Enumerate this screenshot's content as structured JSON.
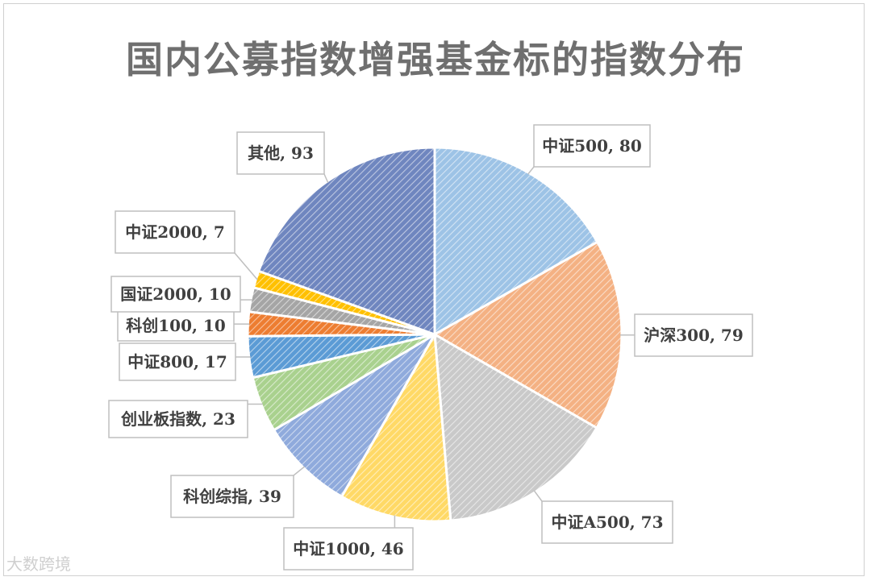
{
  "chart_data": {
    "type": "pie",
    "title": "国内公募指数增强基金标的指数分布",
    "slices": [
      {
        "name": "中证500",
        "value": 80,
        "label": "中证500, 80",
        "color": "#9dc3e6"
      },
      {
        "name": "沪深300",
        "value": 79,
        "label": "沪深300, 79",
        "color": "#f4b183"
      },
      {
        "name": "中证A500",
        "value": 73,
        "label": "中证A500, 73",
        "color": "#c9c9c9"
      },
      {
        "name": "中证1000",
        "value": 46,
        "label": "中证1000, 46",
        "color": "#ffd966"
      },
      {
        "name": "科创综指",
        "value": 39,
        "label": "科创综指, 39",
        "color": "#8faadc"
      },
      {
        "name": "创业板指数",
        "value": 23,
        "label": "创业板指数, 23",
        "color": "#a9d18e"
      },
      {
        "name": "中证800",
        "value": 17,
        "label": "中证800, 17",
        "color": "#5b9bd5"
      },
      {
        "name": "科创100",
        "value": 10,
        "label": "科创100, 10",
        "color": "#ed7d31"
      },
      {
        "name": "国证2000",
        "value": 10,
        "label": "国证2000, 10",
        "color": "#a5a5a5"
      },
      {
        "name": "中证2000",
        "value": 7,
        "label": "中证2000, 7",
        "color": "#ffc000"
      },
      {
        "name": "其他",
        "value": 93,
        "label": "其他, 93",
        "color": "#6f86bf"
      }
    ],
    "legend": "none",
    "data_labels": "outside-callout"
  },
  "watermark": "大数跨境"
}
